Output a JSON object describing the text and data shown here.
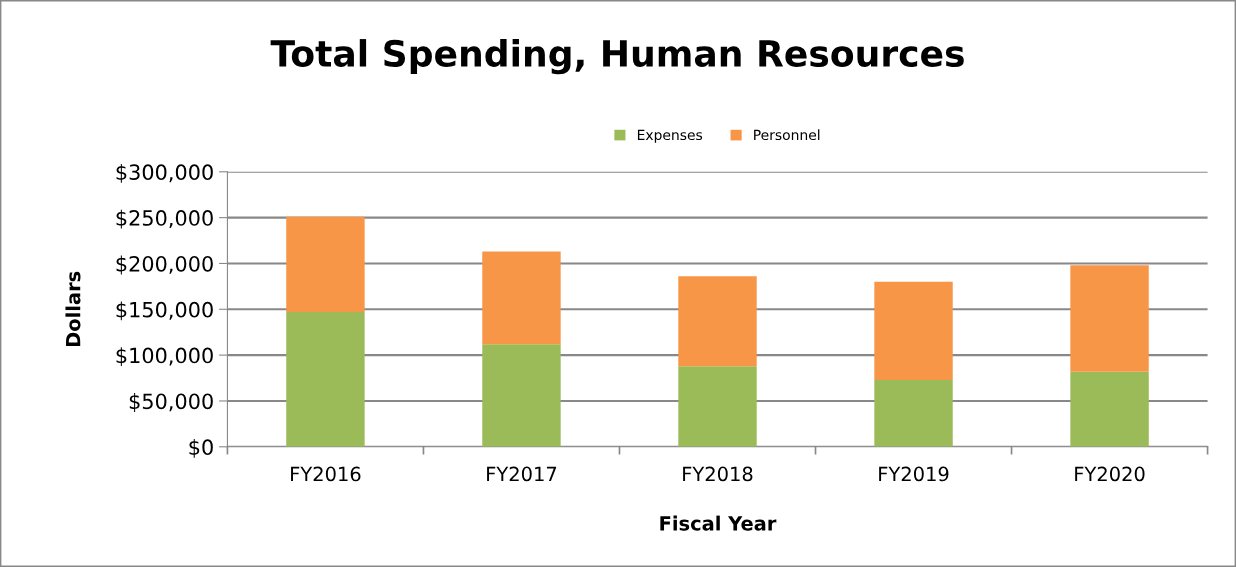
{
  "chart_data": {
    "type": "bar",
    "title": "Total Spending, Human Resources",
    "xlabel": "Fiscal Year",
    "ylabel": "Dollars",
    "categories": [
      "FY2016",
      "FY2017",
      "FY2018",
      "FY2019",
      "FY2020"
    ],
    "stacked": true,
    "series": [
      {
        "name": "Expenses",
        "color": "#9bbb59",
        "values": [
          147000,
          112000,
          88000,
          73000,
          82000
        ]
      },
      {
        "name": "Personnel",
        "color": "#f79646",
        "values": [
          104000,
          101000,
          98000,
          107000,
          116000
        ]
      }
    ],
    "ylim": [
      0,
      300000
    ],
    "yticks": [
      {
        "value": 0,
        "label": "$0"
      },
      {
        "value": 50000,
        "label": "$50,000"
      },
      {
        "value": 100000,
        "label": "$100,000"
      },
      {
        "value": 150000,
        "label": "$150,000"
      },
      {
        "value": 200000,
        "label": "$200,000"
      },
      {
        "value": 250000,
        "label": "$250,000"
      },
      {
        "value": 300000,
        "label": "$300,000"
      }
    ],
    "grid": "y",
    "legend": "top"
  }
}
